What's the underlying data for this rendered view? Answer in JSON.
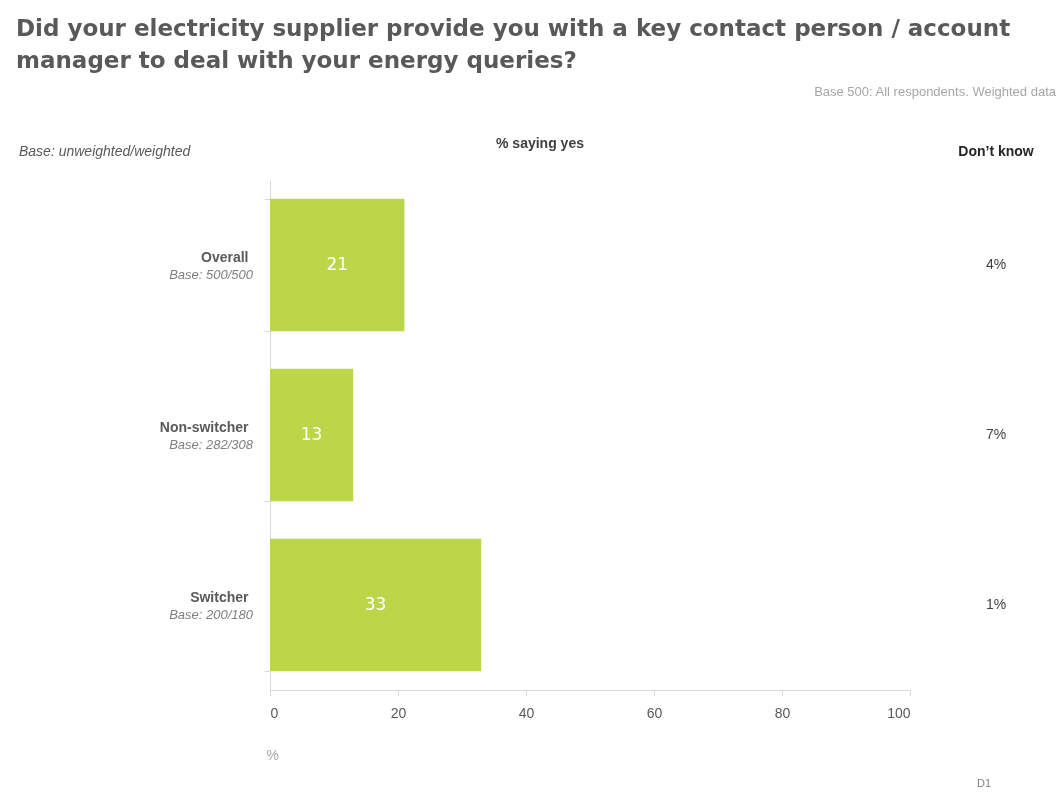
{
  "chart_data": {
    "type": "bar",
    "orientation": "horizontal",
    "title": "Did your electricity supplier provide you with a key contact person / account manager to deal with your energy queries?",
    "xlabel": "%",
    "categories": [
      "Overall",
      "Non-switcher",
      "Switcher"
    ],
    "values": [
      21,
      13,
      33
    ],
    "color": "#bcd64a",
    "data_labels": true,
    "xlim": [
      0,
      100
    ],
    "xticks": [
      0,
      20,
      40,
      60,
      80,
      100
    ],
    "grid": false,
    "annotations": [
      "Base 500: All respondents. Weighted data",
      "Base: unweighted/weighted",
      "% saying yes",
      "Don’t know",
      "D1",
      "Base: 500/500",
      "Base: 282/308",
      "Base: 200/180",
      "4%",
      "7%",
      "1%"
    ]
  }
}
